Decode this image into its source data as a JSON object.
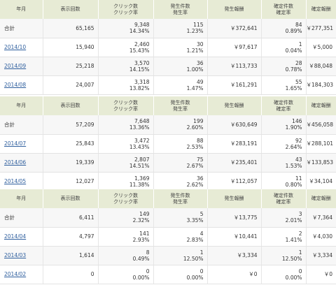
{
  "tables": [
    {
      "headers": [
        "年月",
        "表示回数",
        "クリック数\nクリック率",
        "発生件数\n発生率",
        "発生報酬",
        "確定件数\n確定率",
        "確定報酬"
      ],
      "rows": [
        {
          "label": "合計",
          "link": false,
          "cells": [
            "65,165",
            "9,348\n14.34%",
            "115\n1.23%",
            "￥372,641",
            "84\n0.89%",
            "￥277,351"
          ]
        },
        {
          "label": "2014/10",
          "link": true,
          "cells": [
            "15,940",
            "2,460\n15.43%",
            "30\n1.21%",
            "￥97,617",
            "1\n0.04%",
            "￥5,000"
          ]
        },
        {
          "label": "2014/09",
          "link": true,
          "cells": [
            "25,218",
            "3,570\n14.15%",
            "36\n1.00%",
            "￥113,733",
            "28\n0.78%",
            "￥88,048"
          ]
        },
        {
          "label": "2014/08",
          "link": true,
          "cells": [
            "24,007",
            "3,318\n13.82%",
            "49\n1.47%",
            "￥161,291",
            "55\n1.65%",
            "￥184,303"
          ]
        }
      ]
    },
    {
      "headers": [
        "年月",
        "表示回数",
        "クリック数\nクリック率",
        "発生件数\n発生率",
        "発生報酬",
        "確定件数\n確定率",
        "確定報酬"
      ],
      "rows": [
        {
          "label": "合計",
          "link": false,
          "cells": [
            "57,209",
            "7,648\n13.36%",
            "199\n2.60%",
            "￥630,649",
            "146\n1.90%",
            "￥456,058"
          ]
        },
        {
          "label": "2014/07",
          "link": true,
          "cells": [
            "25,843",
            "3,472\n13.43%",
            "88\n2.53%",
            "￥283,191",
            "92\n2.64%",
            "￥288,101"
          ]
        },
        {
          "label": "2014/06",
          "link": true,
          "cells": [
            "19,339",
            "2,807\n14.51%",
            "75\n2.67%",
            "￥235,401",
            "43\n1.53%",
            "￥133,853"
          ]
        },
        {
          "label": "2014/05",
          "link": true,
          "cells": [
            "12,027",
            "1,369\n11.38%",
            "36\n2.62%",
            "￥112,057",
            "11\n0.80%",
            "￥34,104"
          ]
        }
      ]
    },
    {
      "headers": [
        "年月",
        "表示回数",
        "クリック数\nクリック率",
        "発生件数\n発生率",
        "発生報酬",
        "確定件数\n確定率",
        "確定報酬"
      ],
      "rows": [
        {
          "label": "合計",
          "link": false,
          "cells": [
            "6,411",
            "149\n2.32%",
            "5\n3.35%",
            "￥13,775",
            "3\n2.01%",
            "￥7,364"
          ]
        },
        {
          "label": "2014/04",
          "link": true,
          "cells": [
            "4,797",
            "141\n2.93%",
            "4\n2.83%",
            "￥10,441",
            "2\n1.41%",
            "￥4,030"
          ]
        },
        {
          "label": "2014/03",
          "link": true,
          "cells": [
            "1,614",
            "8\n0.49%",
            "1\n12.50%",
            "￥3,334",
            "1\n12.50%",
            "￥3,334"
          ]
        },
        {
          "label": "2014/02",
          "link": true,
          "cells": [
            "0",
            "0\n0.00%",
            "0\n0.00%",
            "￥0",
            "0\n0.00%",
            "￥0"
          ]
        }
      ]
    }
  ]
}
